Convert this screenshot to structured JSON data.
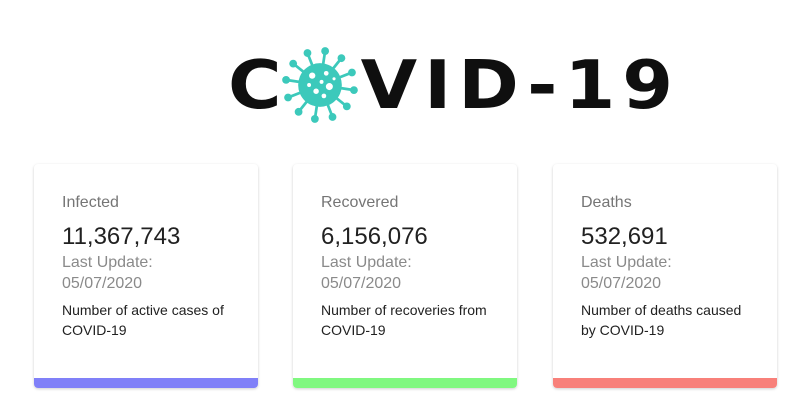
{
  "logo": {
    "text_before": "C",
    "text_after": "VID-19",
    "alt": "COVID-19",
    "virus_icon": "virus-icon",
    "virus_color": "#3cc9bb"
  },
  "cards": [
    {
      "label": "Infected",
      "value": "11,367,743",
      "update_label": "Last Update:",
      "date": "05/07/2020",
      "description": "Number of active cases of COVID-19",
      "bar_color": "#8080f8"
    },
    {
      "label": "Recovered",
      "value": "6,156,076",
      "update_label": "Last Update:",
      "date": "05/07/2020",
      "description": "Number of recoveries from COVID-19",
      "bar_color": "#80f880"
    },
    {
      "label": "Deaths",
      "value": "532,691",
      "update_label": "Last Update:",
      "date": "05/07/2020",
      "description": "Number of deaths caused by COVID-19",
      "bar_color": "#f8807a"
    }
  ]
}
